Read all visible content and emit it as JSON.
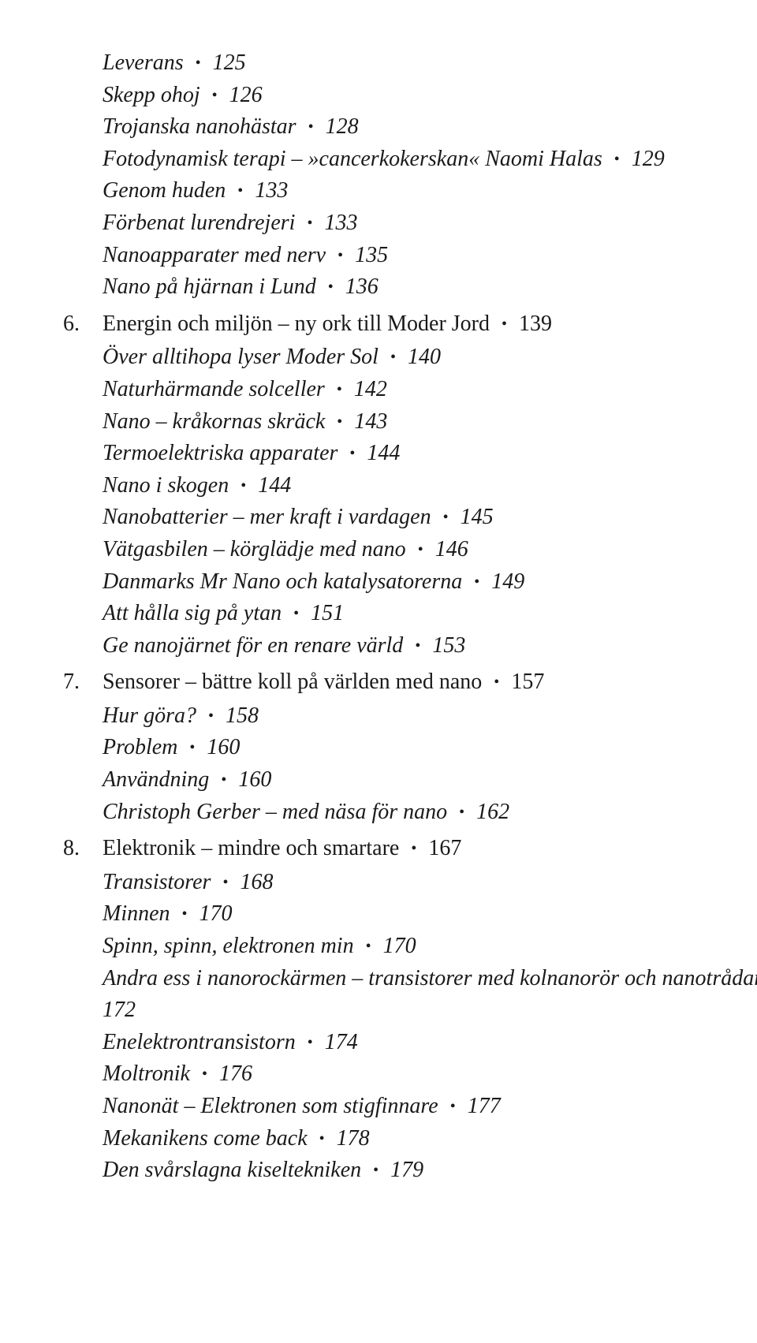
{
  "bullet": "•",
  "orphan_subs": [
    {
      "label": "Leverans",
      "page": "125"
    },
    {
      "label": "Skepp ohoj",
      "page": "126"
    },
    {
      "label": "Trojanska nanohästar",
      "page": "128"
    },
    {
      "label": "Fotodynamisk terapi – »cancerkokerskan« Naomi Halas",
      "page": "129"
    },
    {
      "label": "Genom huden",
      "page": "133"
    },
    {
      "label": "Förbenat lurendrejeri",
      "page": "133"
    },
    {
      "label": "Nanoapparater med nerv",
      "page": "135"
    },
    {
      "label": "Nano på hjärnan i Lund",
      "page": "136"
    }
  ],
  "chapters": [
    {
      "num": "6.",
      "title": "Energin och miljön – ny ork till Moder Jord",
      "page": "139",
      "subs": [
        {
          "label": "Över alltihopa lyser Moder Sol",
          "page": "140"
        },
        {
          "label": "Naturhärmande solceller",
          "page": "142"
        },
        {
          "label": "Nano – kråkornas skräck",
          "page": "143"
        },
        {
          "label": "Termoelektriska apparater",
          "page": "144"
        },
        {
          "label": "Nano i skogen",
          "page": "144"
        },
        {
          "label": "Nanobatterier – mer kraft i vardagen",
          "page": "145"
        },
        {
          "label": "Vätgasbilen – körglädje med nano",
          "page": "146"
        },
        {
          "label": "Danmarks Mr Nano och katalysatorerna",
          "page": "149"
        },
        {
          "label": "Att hålla sig på ytan",
          "page": "151"
        },
        {
          "label": "Ge nanojärnet för en renare värld",
          "page": "153"
        }
      ]
    },
    {
      "num": "7.",
      "title": "Sensorer – bättre koll på världen med nano",
      "page": "157",
      "subs": [
        {
          "label": "Hur göra?",
          "page": "158"
        },
        {
          "label": "Problem",
          "page": "160"
        },
        {
          "label": "Användning",
          "page": "160"
        },
        {
          "label": "Christoph Gerber – med näsa för nano",
          "page": "162"
        }
      ]
    },
    {
      "num": "8.",
      "title": "Elektronik – mindre och smartare",
      "page": "167",
      "subs": [
        {
          "label": "Transistorer",
          "page": "168"
        },
        {
          "label": "Minnen",
          "page": "170"
        },
        {
          "label": "Spinn, spinn, elektronen min",
          "page": "170"
        },
        {
          "label": "Andra ess i nanorockärmen – transistorer med kolnanorör och nanotrådar",
          "page": "172"
        },
        {
          "label": "Enelektrontransistorn",
          "page": "174"
        },
        {
          "label": "Moltronik",
          "page": "176"
        },
        {
          "label": "Nanonät – Elektronen som stigfinnare",
          "page": "177"
        },
        {
          "label": "Mekanikens come back",
          "page": "178"
        },
        {
          "label": "Den svårslagna kiseltekniken",
          "page": "179"
        }
      ]
    }
  ]
}
